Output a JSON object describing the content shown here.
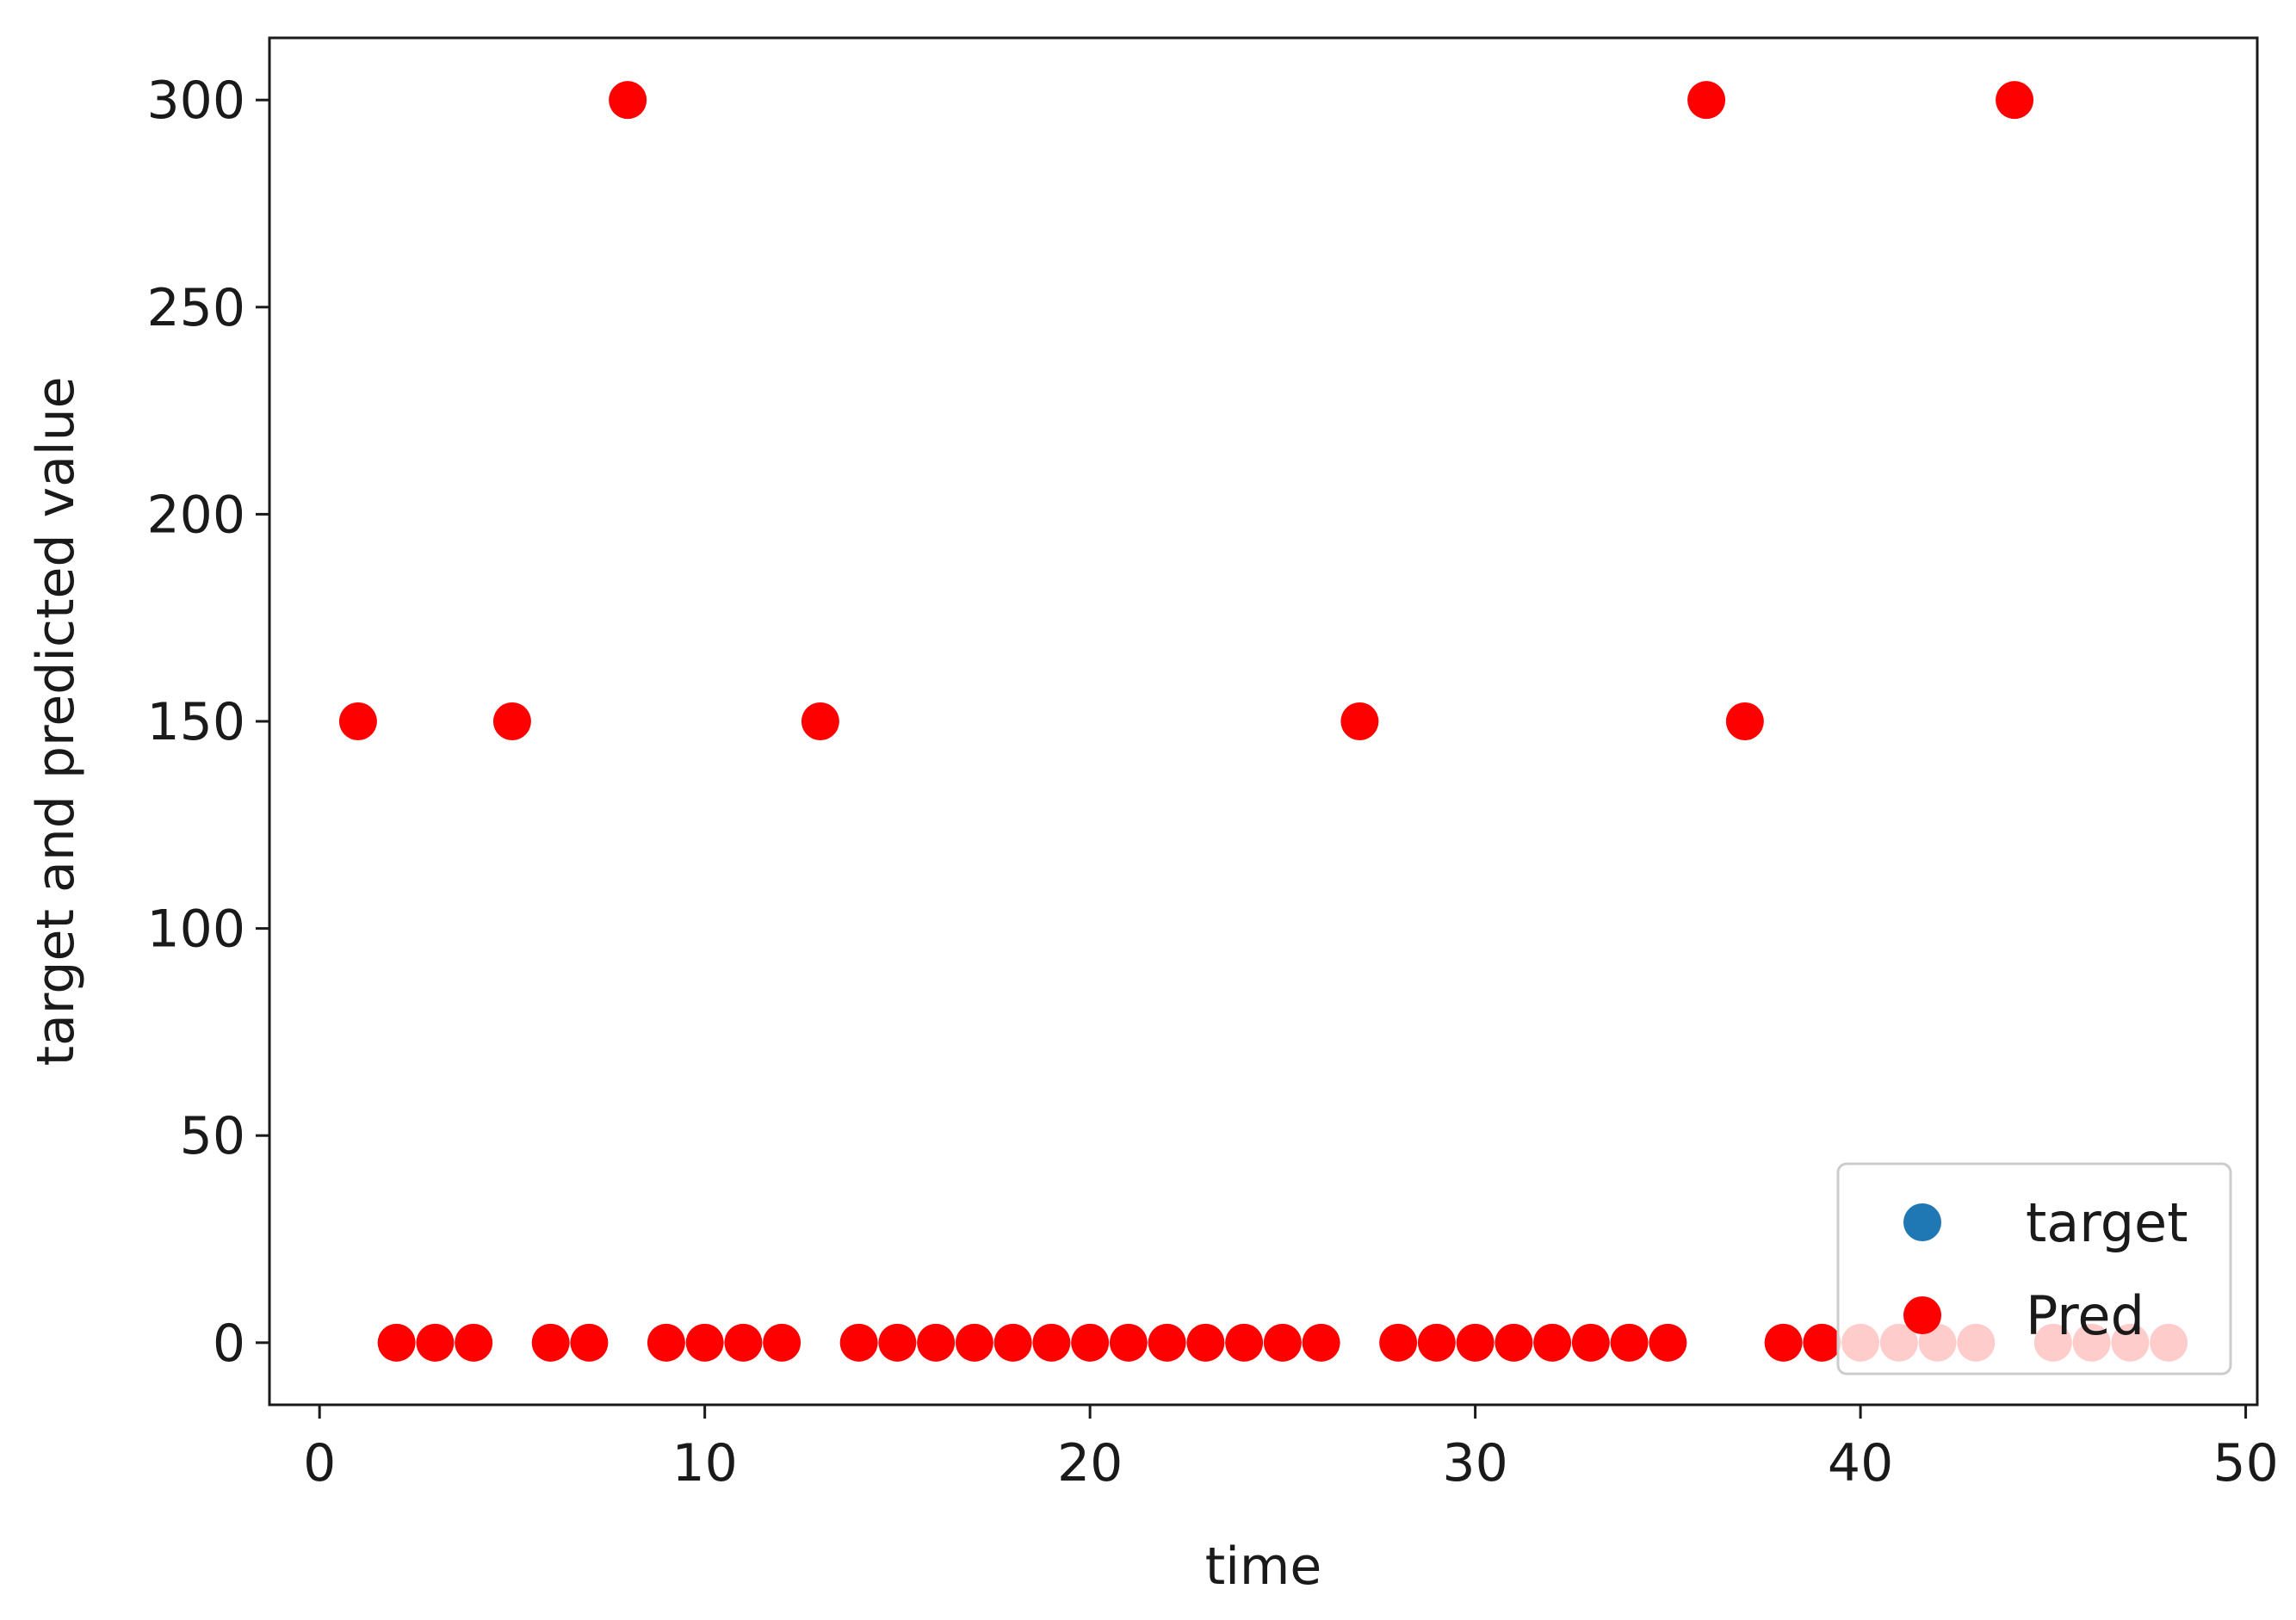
{
  "chart_data": {
    "type": "scatter",
    "title": "",
    "xlabel": "time",
    "ylabel": "target and predicted value",
    "xlim": [
      -1.3,
      50.3
    ],
    "ylim": [
      -15,
      315
    ],
    "x_ticks": [
      0,
      10,
      20,
      30,
      40,
      50
    ],
    "y_ticks": [
      0,
      50,
      100,
      150,
      200,
      250,
      300
    ],
    "grid": false,
    "legend_position": "lower-right",
    "series": [
      {
        "name": "target",
        "color": "#1f77b4",
        "x": [],
        "y": []
      },
      {
        "name": "Pred",
        "color": "#ff0000",
        "x": [
          1,
          2,
          3,
          4,
          5,
          6,
          7,
          8,
          9,
          10,
          11,
          12,
          13,
          14,
          15,
          16,
          17,
          18,
          19,
          20,
          21,
          22,
          23,
          24,
          25,
          26,
          27,
          28,
          29,
          30,
          31,
          32,
          33,
          34,
          35,
          36,
          37,
          38,
          39,
          40,
          41,
          42,
          43,
          44,
          45,
          46,
          47,
          48
        ],
        "y": [
          150,
          0,
          0,
          0,
          150,
          0,
          0,
          300,
          0,
          0,
          0,
          0,
          150,
          0,
          0,
          0,
          0,
          0,
          0,
          0,
          0,
          0,
          0,
          0,
          0,
          0,
          150,
          0,
          0,
          0,
          0,
          0,
          0,
          0,
          0,
          300,
          150,
          0,
          0,
          0,
          0,
          0,
          0,
          300,
          0,
          0,
          0,
          0
        ]
      }
    ]
  }
}
